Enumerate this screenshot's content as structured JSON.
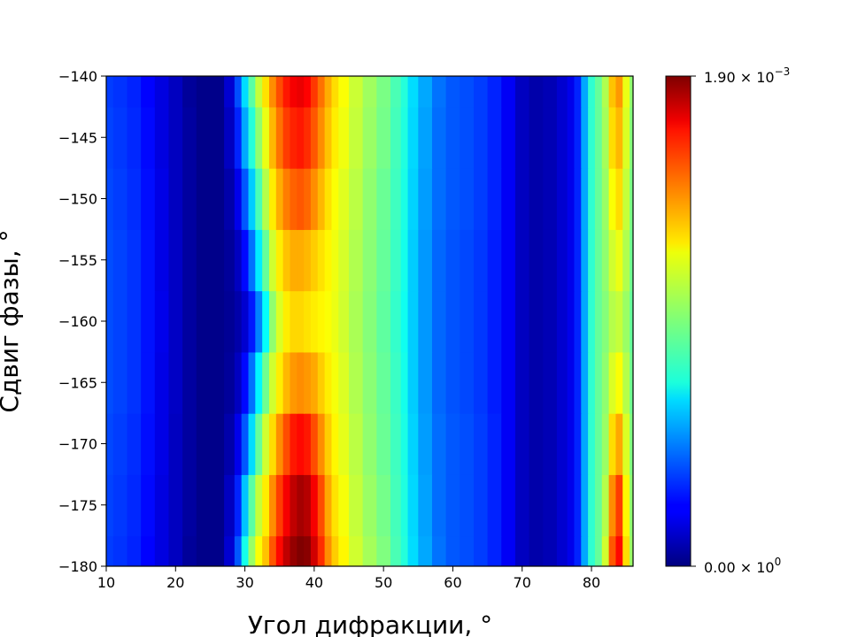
{
  "chart_data": {
    "type": "heatmap",
    "title": "",
    "xlabel": "Угол дифракции, °",
    "ylabel": "Сдвиг фазы, °",
    "xlim": [
      10,
      86
    ],
    "ylim": [
      -180,
      -140
    ],
    "xticks": [
      "10",
      "20",
      "30",
      "40",
      "50",
      "60",
      "70",
      "80"
    ],
    "yticks": [
      "−140",
      "−145",
      "−150",
      "−155",
      "−160",
      "−165",
      "−170",
      "−175",
      "−180"
    ],
    "colormap": "jet",
    "colorbar": {
      "min": 0.0,
      "max": 0.0019,
      "min_label": "0.00",
      "min_exp": "0",
      "max_label": "1.90",
      "max_exp": "−3",
      "base": "10"
    },
    "y": [
      -180,
      -175,
      -170,
      -165,
      -160,
      -155,
      -150,
      -145,
      -140
    ],
    "x": [
      10,
      12,
      14,
      16,
      18,
      20,
      22,
      24,
      26,
      28,
      29,
      30,
      31,
      32,
      33,
      34,
      35,
      36,
      37,
      38,
      39,
      40,
      41,
      42,
      43,
      44,
      46,
      48,
      50,
      52,
      53,
      54,
      56,
      58,
      60,
      62,
      64,
      66,
      68,
      70,
      72,
      74,
      76,
      77,
      78,
      79,
      80,
      81,
      82,
      83,
      84,
      85,
      86
    ],
    "z": [
      [
        0.00035,
        0.00033,
        0.0003,
        0.00024,
        0.00018,
        0.00012,
        5e-05,
        2e-05,
        2e-05,
        0.00015,
        0.0004,
        0.00075,
        0.001,
        0.00118,
        0.0013,
        0.0015,
        0.00165,
        0.00178,
        0.00186,
        0.0019,
        0.00188,
        0.00175,
        0.00158,
        0.0014,
        0.00128,
        0.0012,
        0.0011,
        0.00102,
        0.00095,
        0.00085,
        0.00078,
        0.00065,
        0.00055,
        0.00045,
        0.0004,
        0.00038,
        0.00035,
        0.0003,
        0.00022,
        0.00012,
        8e-05,
        0.0001,
        0.00015,
        0.0002,
        0.0003,
        0.00055,
        0.0008,
        0.0009,
        0.0011,
        0.0015,
        0.00165,
        0.00125,
        0.001
      ],
      [
        0.00036,
        0.00034,
        0.00031,
        0.00025,
        0.00018,
        0.00012,
        6e-05,
        2e-05,
        2e-05,
        0.00012,
        0.0003,
        0.0006,
        0.00088,
        0.00108,
        0.00122,
        0.0014,
        0.00155,
        0.00168,
        0.00178,
        0.00183,
        0.0018,
        0.00168,
        0.00152,
        0.00135,
        0.00124,
        0.00117,
        0.00108,
        0.001,
        0.00093,
        0.00084,
        0.00077,
        0.00064,
        0.00054,
        0.00044,
        0.0004,
        0.00038,
        0.00035,
        0.0003,
        0.00022,
        0.00012,
        8e-05,
        0.0001,
        0.00015,
        0.0002,
        0.0003,
        0.00055,
        0.0008,
        0.0009,
        0.00105,
        0.0014,
        0.00155,
        0.0012,
        0.00098
      ],
      [
        0.00037,
        0.00035,
        0.00032,
        0.00026,
        0.00019,
        0.00012,
        6e-05,
        2e-05,
        2e-05,
        8e-05,
        0.0002,
        0.0004,
        0.00065,
        0.0009,
        0.0011,
        0.00125,
        0.0014,
        0.00152,
        0.00162,
        0.00165,
        0.00162,
        0.00152,
        0.0014,
        0.00128,
        0.0012,
        0.00114,
        0.00106,
        0.00098,
        0.00091,
        0.00083,
        0.00076,
        0.00063,
        0.00053,
        0.00044,
        0.0004,
        0.00038,
        0.00035,
        0.0003,
        0.00022,
        0.00012,
        8e-05,
        0.0001,
        0.00015,
        0.0002,
        0.0003,
        0.00055,
        0.0008,
        0.0009,
        0.001,
        0.00125,
        0.00135,
        0.00112,
        0.00095
      ],
      [
        0.00038,
        0.00036,
        0.00033,
        0.00027,
        0.00019,
        0.00013,
        6e-05,
        2e-05,
        2e-05,
        5e-05,
        0.00012,
        0.00025,
        0.00045,
        0.0007,
        0.00092,
        0.0011,
        0.00122,
        0.00132,
        0.00138,
        0.0014,
        0.00138,
        0.00135,
        0.00128,
        0.00122,
        0.00117,
        0.00112,
        0.00104,
        0.00097,
        0.0009,
        0.00082,
        0.00075,
        0.00062,
        0.00052,
        0.00043,
        0.00039,
        0.00037,
        0.00034,
        0.00029,
        0.00022,
        0.00012,
        8e-05,
        0.0001,
        0.00015,
        0.0002,
        0.0003,
        0.00055,
        0.0008,
        0.0009,
        0.00098,
        0.00112,
        0.00118,
        0.00105,
        0.00092
      ],
      [
        0.00038,
        0.00036,
        0.00033,
        0.00027,
        0.0002,
        0.00013,
        6e-05,
        2e-05,
        2e-05,
        4e-05,
        8e-05,
        0.00015,
        0.00028,
        0.00048,
        0.00072,
        0.00098,
        0.00112,
        0.00122,
        0.00126,
        0.00126,
        0.00124,
        0.00122,
        0.0012,
        0.00118,
        0.00115,
        0.0011,
        0.00103,
        0.00096,
        0.00089,
        0.00081,
        0.00074,
        0.00062,
        0.00052,
        0.00043,
        0.00039,
        0.00037,
        0.00034,
        0.00029,
        0.00022,
        0.00012,
        8e-05,
        0.0001,
        0.00015,
        0.0002,
        0.0003,
        0.00055,
        0.0008,
        0.0009,
        0.00096,
        0.00105,
        0.00108,
        0.001,
        0.0009
      ],
      [
        0.00038,
        0.00036,
        0.00033,
        0.00027,
        0.00019,
        0.00013,
        6e-05,
        2e-05,
        2e-05,
        5e-05,
        0.00012,
        0.00025,
        0.00045,
        0.00068,
        0.0009,
        0.0011,
        0.00122,
        0.0013,
        0.00134,
        0.00134,
        0.00132,
        0.00128,
        0.00124,
        0.0012,
        0.00116,
        0.00111,
        0.00104,
        0.00097,
        0.0009,
        0.00082,
        0.00075,
        0.00062,
        0.00052,
        0.00043,
        0.00039,
        0.00037,
        0.00034,
        0.00029,
        0.00022,
        0.00012,
        8e-05,
        0.0001,
        0.00015,
        0.0002,
        0.0003,
        0.00055,
        0.0008,
        0.0009,
        0.00098,
        0.0011,
        0.00115,
        0.00104,
        0.00092
      ],
      [
        0.00037,
        0.00035,
        0.00032,
        0.00026,
        0.00019,
        0.00012,
        6e-05,
        2e-05,
        2e-05,
        8e-05,
        0.0002,
        0.0004,
        0.00062,
        0.00085,
        0.00105,
        0.00122,
        0.00134,
        0.00143,
        0.00148,
        0.0015,
        0.00147,
        0.0014,
        0.00132,
        0.00124,
        0.00118,
        0.00113,
        0.00106,
        0.00098,
        0.00091,
        0.00083,
        0.00076,
        0.00063,
        0.00053,
        0.00044,
        0.0004,
        0.00038,
        0.00035,
        0.0003,
        0.00022,
        0.00012,
        8e-05,
        0.0001,
        0.00015,
        0.0002,
        0.0003,
        0.00055,
        0.0008,
        0.0009,
        0.001,
        0.00118,
        0.00125,
        0.00108,
        0.00094
      ],
      [
        0.00036,
        0.00034,
        0.00031,
        0.00025,
        0.00018,
        0.00012,
        6e-05,
        2e-05,
        2e-05,
        0.00012,
        0.0003,
        0.00055,
        0.00078,
        0.00098,
        0.00115,
        0.00132,
        0.00145,
        0.00155,
        0.0016,
        0.00162,
        0.00158,
        0.0015,
        0.0014,
        0.0013,
        0.00122,
        0.00116,
        0.00108,
        0.001,
        0.00093,
        0.00084,
        0.00077,
        0.00064,
        0.00054,
        0.00044,
        0.0004,
        0.00038,
        0.00035,
        0.0003,
        0.00022,
        0.00012,
        8e-05,
        0.0001,
        0.00015,
        0.0002,
        0.0003,
        0.00055,
        0.0008,
        0.0009,
        0.00102,
        0.00125,
        0.00132,
        0.00112,
        0.00096
      ],
      [
        0.00035,
        0.00033,
        0.0003,
        0.00024,
        0.00018,
        0.00012,
        5e-05,
        2e-05,
        2e-05,
        0.00015,
        0.00038,
        0.00065,
        0.00088,
        0.00108,
        0.00124,
        0.0014,
        0.00152,
        0.00162,
        0.00168,
        0.0017,
        0.00166,
        0.00156,
        0.00145,
        0.00134,
        0.00125,
        0.00118,
        0.00109,
        0.00101,
        0.00094,
        0.00085,
        0.00078,
        0.00065,
        0.00055,
        0.00045,
        0.0004,
        0.00038,
        0.00035,
        0.0003,
        0.00022,
        0.00012,
        8e-05,
        0.0001,
        0.00015,
        0.0002,
        0.0003,
        0.00055,
        0.0008,
        0.0009,
        0.00104,
        0.0013,
        0.00138,
        0.00115,
        0.00098
      ]
    ]
  }
}
